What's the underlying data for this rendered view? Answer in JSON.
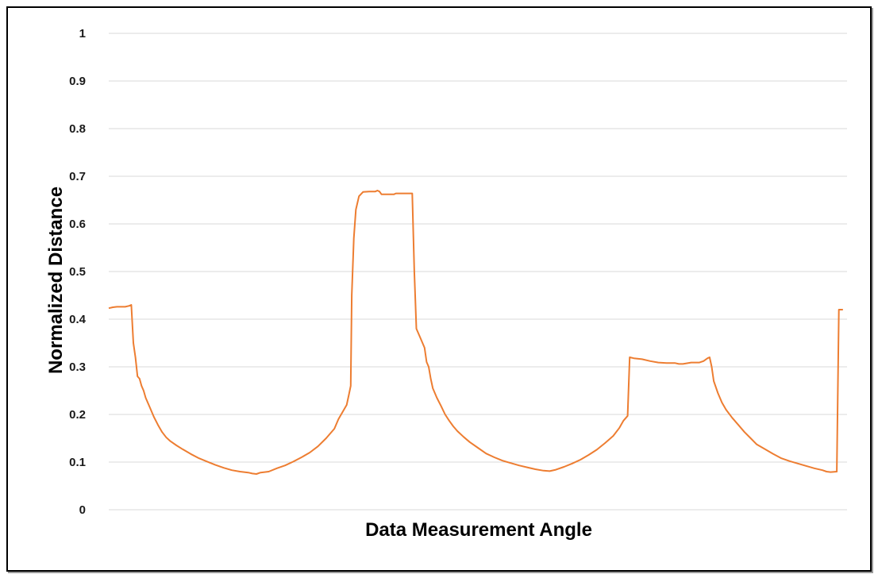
{
  "chart_data": {
    "type": "line",
    "title": "",
    "xlabel": "Data Measurement Angle",
    "ylabel": "Normalized Distance",
    "ylim": [
      0,
      1
    ],
    "yticks": [
      "0",
      "0.1",
      "0.2",
      "0.3",
      "0.4",
      "0.5",
      "0.6",
      "0.7",
      "0.8",
      "0.9",
      "1"
    ],
    "xlim": [
      0,
      360
    ],
    "grid": true,
    "legend": "none",
    "series": [
      {
        "color": "#ED7D31",
        "points": [
          [
            0,
            0.423
          ],
          [
            2,
            0.425
          ],
          [
            4,
            0.426
          ],
          [
            6,
            0.426
          ],
          [
            8,
            0.426
          ],
          [
            10,
            0.428
          ],
          [
            11,
            0.43
          ],
          [
            12,
            0.35
          ],
          [
            13,
            0.32
          ],
          [
            14,
            0.28
          ],
          [
            15,
            0.275
          ],
          [
            16,
            0.26
          ],
          [
            17,
            0.25
          ],
          [
            18,
            0.235
          ],
          [
            20,
            0.215
          ],
          [
            22,
            0.195
          ],
          [
            24,
            0.178
          ],
          [
            26,
            0.163
          ],
          [
            28,
            0.152
          ],
          [
            30,
            0.144
          ],
          [
            33,
            0.135
          ],
          [
            36,
            0.127
          ],
          [
            40,
            0.117
          ],
          [
            44,
            0.108
          ],
          [
            48,
            0.101
          ],
          [
            52,
            0.094
          ],
          [
            56,
            0.088
          ],
          [
            60,
            0.083
          ],
          [
            64,
            0.08
          ],
          [
            68,
            0.078
          ],
          [
            70,
            0.076
          ],
          [
            72,
            0.075
          ],
          [
            74,
            0.078
          ],
          [
            78,
            0.08
          ],
          [
            82,
            0.087
          ],
          [
            86,
            0.093
          ],
          [
            90,
            0.101
          ],
          [
            94,
            0.11
          ],
          [
            98,
            0.12
          ],
          [
            102,
            0.133
          ],
          [
            106,
            0.15
          ],
          [
            110,
            0.17
          ],
          [
            112,
            0.19
          ],
          [
            114,
            0.205
          ],
          [
            116,
            0.22
          ],
          [
            117,
            0.24
          ],
          [
            118,
            0.26
          ],
          [
            118.5,
            0.45
          ],
          [
            119.5,
            0.57
          ],
          [
            120.5,
            0.63
          ],
          [
            122,
            0.658
          ],
          [
            124,
            0.667
          ],
          [
            127,
            0.668
          ],
          [
            130,
            0.668
          ],
          [
            131,
            0.67
          ],
          [
            132,
            0.668
          ],
          [
            133,
            0.662
          ],
          [
            136,
            0.662
          ],
          [
            139,
            0.662
          ],
          [
            140,
            0.664
          ],
          [
            145,
            0.664
          ],
          [
            148,
            0.664
          ],
          [
            149,
            0.5
          ],
          [
            150,
            0.38
          ],
          [
            152,
            0.36
          ],
          [
            154,
            0.34
          ],
          [
            155,
            0.31
          ],
          [
            156,
            0.3
          ],
          [
            157,
            0.275
          ],
          [
            158,
            0.255
          ],
          [
            160,
            0.235
          ],
          [
            162,
            0.218
          ],
          [
            164,
            0.2
          ],
          [
            166,
            0.187
          ],
          [
            168,
            0.175
          ],
          [
            170,
            0.165
          ],
          [
            173,
            0.153
          ],
          [
            176,
            0.142
          ],
          [
            180,
            0.13
          ],
          [
            184,
            0.118
          ],
          [
            188,
            0.11
          ],
          [
            192,
            0.103
          ],
          [
            196,
            0.098
          ],
          [
            200,
            0.093
          ],
          [
            204,
            0.089
          ],
          [
            208,
            0.085
          ],
          [
            212,
            0.082
          ],
          [
            215,
            0.081
          ],
          [
            218,
            0.084
          ],
          [
            222,
            0.09
          ],
          [
            226,
            0.097
          ],
          [
            230,
            0.105
          ],
          [
            234,
            0.115
          ],
          [
            238,
            0.126
          ],
          [
            242,
            0.14
          ],
          [
            246,
            0.155
          ],
          [
            249,
            0.172
          ],
          [
            251,
            0.187
          ],
          [
            253,
            0.197
          ],
          [
            254,
            0.32
          ],
          [
            256,
            0.318
          ],
          [
            260,
            0.316
          ],
          [
            264,
            0.312
          ],
          [
            268,
            0.309
          ],
          [
            272,
            0.308
          ],
          [
            276,
            0.308
          ],
          [
            278,
            0.306
          ],
          [
            280,
            0.306
          ],
          [
            284,
            0.309
          ],
          [
            288,
            0.309
          ],
          [
            290,
            0.312
          ],
          [
            292,
            0.318
          ],
          [
            293,
            0.32
          ],
          [
            294,
            0.3
          ],
          [
            295,
            0.27
          ],
          [
            297,
            0.245
          ],
          [
            299,
            0.225
          ],
          [
            301,
            0.21
          ],
          [
            304,
            0.193
          ],
          [
            307,
            0.178
          ],
          [
            310,
            0.163
          ],
          [
            313,
            0.15
          ],
          [
            316,
            0.137
          ],
          [
            320,
            0.127
          ],
          [
            324,
            0.117
          ],
          [
            328,
            0.108
          ],
          [
            332,
            0.102
          ],
          [
            336,
            0.097
          ],
          [
            340,
            0.092
          ],
          [
            344,
            0.087
          ],
          [
            348,
            0.083
          ],
          [
            350,
            0.08
          ],
          [
            352,
            0.079
          ],
          [
            355,
            0.08
          ],
          [
            356,
            0.42
          ],
          [
            358,
            0.42
          ]
        ]
      }
    ]
  }
}
